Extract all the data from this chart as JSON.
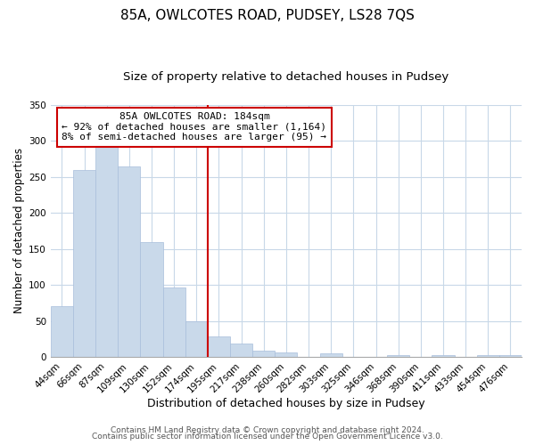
{
  "title": "85A, OWLCOTES ROAD, PUDSEY, LS28 7QS",
  "subtitle": "Size of property relative to detached houses in Pudsey",
  "xlabel": "Distribution of detached houses by size in Pudsey",
  "ylabel": "Number of detached properties",
  "bar_labels": [
    "44sqm",
    "66sqm",
    "87sqm",
    "109sqm",
    "130sqm",
    "152sqm",
    "174sqm",
    "195sqm",
    "217sqm",
    "238sqm",
    "260sqm",
    "282sqm",
    "303sqm",
    "325sqm",
    "346sqm",
    "368sqm",
    "390sqm",
    "411sqm",
    "433sqm",
    "454sqm",
    "476sqm"
  ],
  "bar_heights": [
    70,
    260,
    293,
    265,
    160,
    97,
    49,
    29,
    19,
    9,
    6,
    0,
    5,
    0,
    0,
    3,
    0,
    2,
    0,
    2,
    2
  ],
  "bar_color": "#c9d9ea",
  "bar_edge_color": "#a8bedb",
  "vline_x_idx": 7,
  "vline_color": "#cc0000",
  "annotation_title": "85A OWLCOTES ROAD: 184sqm",
  "annotation_line1": "← 92% of detached houses are smaller (1,164)",
  "annotation_line2": "8% of semi-detached houses are larger (95) →",
  "annotation_box_color": "#ffffff",
  "annotation_box_edge": "#cc0000",
  "ylim": [
    0,
    350
  ],
  "yticks": [
    0,
    50,
    100,
    150,
    200,
    250,
    300,
    350
  ],
  "footer1": "Contains HM Land Registry data © Crown copyright and database right 2024.",
  "footer2": "Contains public sector information licensed under the Open Government Licence v3.0.",
  "plot_bg_color": "#ffffff",
  "fig_bg_color": "#ffffff",
  "grid_color": "#c8d8e8",
  "title_fontsize": 11,
  "subtitle_fontsize": 9.5,
  "xlabel_fontsize": 9,
  "ylabel_fontsize": 8.5,
  "tick_fontsize": 7.5,
  "annotation_fontsize": 8,
  "footer_fontsize": 6.5
}
